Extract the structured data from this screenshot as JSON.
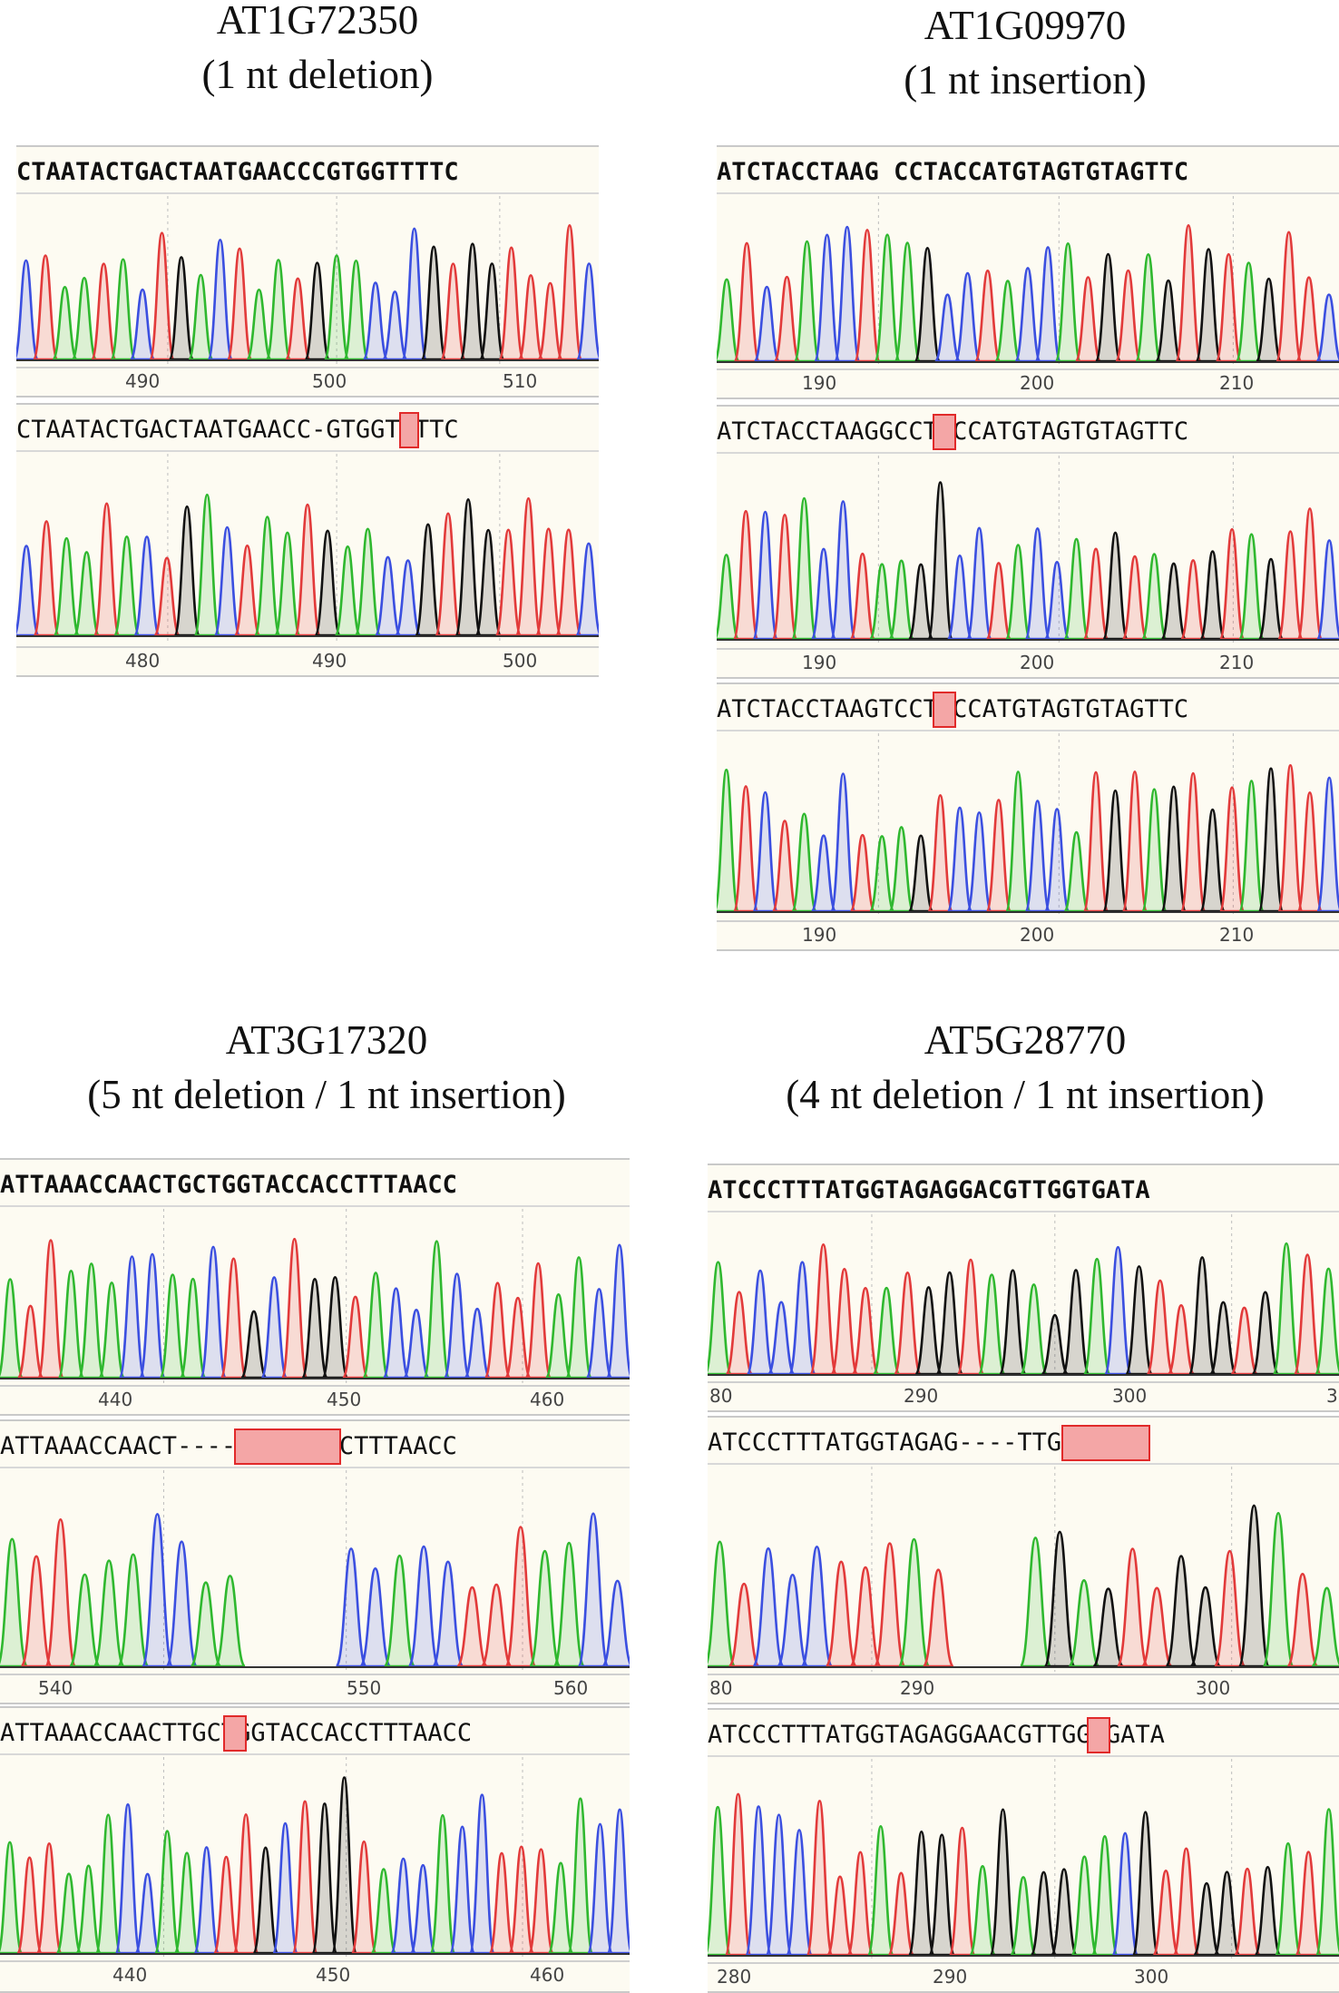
{
  "blocks": [
    {
      "id": "AT1G72350",
      "title": "AT1G72350",
      "subtitle": "(1 nt deletion)",
      "panels": [
        {
          "sequence": "CTAATACTGACTAATGAACCCGTGGTTTTC",
          "bold": true,
          "axis": [
            "490",
            "500",
            "510"
          ],
          "mark": null
        },
        {
          "sequence": "CTAATACTGACTAATGAACC-GTGGTTTTC",
          "bold": false,
          "axis": [
            "480",
            "490",
            "500"
          ],
          "mark": "-"
        }
      ]
    },
    {
      "id": "AT1G09970",
      "title": "AT1G09970",
      "subtitle": "(1 nt insertion)",
      "panels": [
        {
          "sequence": "ATCTACCTAAG CCTACCATGTAGTGTAGTTC",
          "bold": true,
          "axis": [
            "190",
            "200",
            "210"
          ],
          "mark": null
        },
        {
          "sequence": "ATCTACCTAAGGCCTACCATGTAGTGTAGTTC",
          "bold": false,
          "axis": [
            "190",
            "200",
            "210"
          ],
          "mark": "G"
        },
        {
          "sequence": "ATCTACCTAAGTCCTACCATGTAGTGTAGTTC",
          "bold": false,
          "axis": [
            "190",
            "200",
            "210"
          ],
          "mark": "T"
        }
      ]
    },
    {
      "id": "AT3G17320",
      "title": "AT3G17320",
      "subtitle": "(5 nt deletion / 1 nt insertion)",
      "panels": [
        {
          "sequence": "ATTAAACCAACTGCTGGTACCACCTTTAACC",
          "bold": true,
          "axis": [
            "440",
            "450",
            "460"
          ],
          "mark": null
        },
        {
          "sequence": "ATTAAACCAACT-----TACCACCTTTAACC",
          "bold": false,
          "axis": [
            "540",
            "550",
            "560"
          ],
          "mark": "-----"
        },
        {
          "sequence": "ATTAAACCAACTTGCTGGTACCACCTTTAACC",
          "bold": false,
          "axis": [
            "440",
            "450",
            "460"
          ],
          "mark": "T"
        }
      ]
    },
    {
      "id": "AT5G28770",
      "title": "AT5G28770",
      "subtitle": "(4 nt deletion / 1 nt insertion)",
      "panels": [
        {
          "sequence": "ATCCCTTTATGGTAGAGGACGTTGGTGATA",
          "bold": true,
          "axis": [
            "80",
            "290",
            "300",
            "3"
          ],
          "mark": null
        },
        {
          "sequence": "ATCCCTTTATGGTAGAG----TTGGTGATA",
          "bold": false,
          "axis": [
            "80",
            "290",
            "300"
          ],
          "mark": "----"
        },
        {
          "sequence": "ATCCCTTTATGGTAGAGGAACGTTGGTGATA",
          "bold": false,
          "axis": [
            "280",
            "290",
            "300"
          ],
          "mark": "A"
        }
      ]
    }
  ],
  "colors": {
    "A": "#2fb82f",
    "C": "#3b4fe0",
    "G": "#111111",
    "T": "#e23a3a",
    "mark_fill": "#f4a6a6",
    "mark_border": "#e12a2a"
  }
}
